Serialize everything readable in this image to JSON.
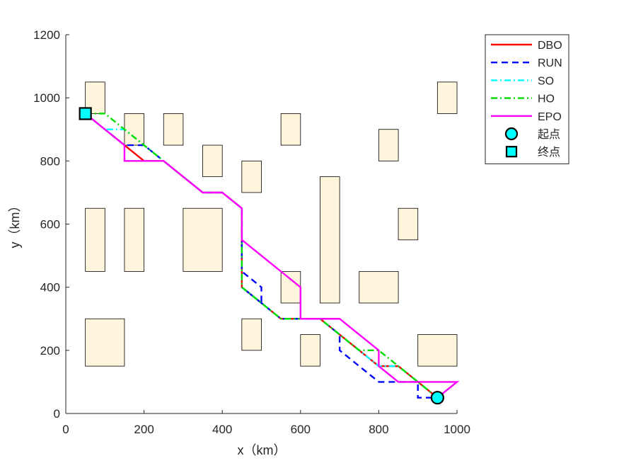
{
  "chart_data": {
    "type": "line",
    "xlabel": "x（km）",
    "ylabel": "y（km）",
    "xlim": [
      0,
      1000
    ],
    "ylim": [
      0,
      1200
    ],
    "xticks": [
      0,
      200,
      400,
      600,
      800,
      1000
    ],
    "yticks": [
      0,
      200,
      400,
      600,
      800,
      1000,
      1200
    ],
    "grid": false,
    "legend_position": "top-right outside",
    "obstacle_color": "#FFF5DC",
    "obstacles": [
      {
        "x": [
          50,
          100
        ],
        "y": [
          950,
          1050
        ]
      },
      {
        "x": [
          150,
          200
        ],
        "y": [
          850,
          950
        ]
      },
      {
        "x": [
          250,
          300
        ],
        "y": [
          850,
          950
        ]
      },
      {
        "x": [
          350,
          400
        ],
        "y": [
          750,
          850
        ]
      },
      {
        "x": [
          450,
          500
        ],
        "y": [
          700,
          800
        ]
      },
      {
        "x": [
          550,
          600
        ],
        "y": [
          850,
          950
        ]
      },
      {
        "x": [
          800,
          850
        ],
        "y": [
          800,
          900
        ]
      },
      {
        "x": [
          950,
          1000
        ],
        "y": [
          950,
          1050
        ]
      },
      {
        "x": [
          50,
          100
        ],
        "y": [
          450,
          650
        ]
      },
      {
        "x": [
          150,
          200
        ],
        "y": [
          450,
          650
        ]
      },
      {
        "x": [
          300,
          400
        ],
        "y": [
          450,
          650
        ]
      },
      {
        "x": [
          650,
          700
        ],
        "y": [
          350,
          750
        ]
      },
      {
        "x": [
          850,
          900
        ],
        "y": [
          550,
          650
        ]
      },
      {
        "x": [
          550,
          600
        ],
        "y": [
          350,
          450
        ]
      },
      {
        "x": [
          750,
          850
        ],
        "y": [
          350,
          450
        ]
      },
      {
        "x": [
          50,
          150
        ],
        "y": [
          150,
          300
        ]
      },
      {
        "x": [
          450,
          500
        ],
        "y": [
          200,
          300
        ]
      },
      {
        "x": [
          600,
          650
        ],
        "y": [
          150,
          250
        ]
      },
      {
        "x": [
          900,
          1000
        ],
        "y": [
          150,
          250
        ]
      }
    ],
    "series": [
      {
        "name": "DBO",
        "color": "#FF0000",
        "dash": "solid",
        "x": [
          50,
          100,
          150,
          200,
          250,
          300,
          350,
          400,
          450,
          450,
          500,
          550,
          600,
          650,
          700,
          750,
          800,
          850,
          900,
          950
        ],
        "y": [
          950,
          900,
          850,
          800,
          800,
          750,
          700,
          700,
          650,
          400,
          350,
          300,
          300,
          300,
          250,
          200,
          150,
          150,
          100,
          50
        ]
      },
      {
        "name": "RUN",
        "color": "#0000FF",
        "dash": "dashed",
        "x": [
          50,
          100,
          150,
          200,
          250,
          300,
          350,
          400,
          450,
          450,
          500,
          500,
          450,
          450,
          500,
          550,
          600,
          650,
          700,
          700,
          750,
          800,
          850,
          900,
          900,
          950
        ],
        "y": [
          950,
          900,
          850,
          850,
          800,
          750,
          700,
          700,
          650,
          450,
          400,
          350,
          400,
          400,
          350,
          300,
          300,
          300,
          250,
          200,
          150,
          100,
          100,
          100,
          50,
          50
        ]
      },
      {
        "name": "SO",
        "color": "#00FFFF",
        "dash": "dashdot",
        "x": [
          50,
          100,
          150,
          200,
          250,
          300,
          350,
          400,
          450,
          450,
          500,
          550,
          600,
          650,
          700,
          750,
          800,
          850,
          900,
          950
        ],
        "y": [
          950,
          900,
          900,
          850,
          800,
          750,
          700,
          700,
          650,
          400,
          350,
          300,
          300,
          300,
          250,
          200,
          150,
          150,
          100,
          50
        ]
      },
      {
        "name": "HO",
        "color": "#00DD00",
        "dash": "dashdot",
        "x": [
          50,
          100,
          150,
          200,
          250,
          300,
          350,
          400,
          450,
          450,
          500,
          550,
          600,
          650,
          700,
          750,
          800,
          850,
          900,
          950
        ],
        "y": [
          950,
          950,
          900,
          850,
          800,
          750,
          700,
          700,
          650,
          400,
          350,
          300,
          300,
          300,
          250,
          200,
          200,
          150,
          100,
          50
        ]
      },
      {
        "name": "EPO",
        "color": "#FF00FF",
        "dash": "solid",
        "x": [
          50,
          100,
          150,
          150,
          200,
          250,
          300,
          350,
          400,
          450,
          450,
          500,
          550,
          600,
          600,
          650,
          700,
          750,
          800,
          800,
          850,
          900,
          950,
          1000,
          950
        ],
        "y": [
          950,
          900,
          850,
          800,
          800,
          800,
          750,
          700,
          700,
          650,
          550,
          500,
          450,
          400,
          300,
          300,
          300,
          250,
          200,
          150,
          100,
          100,
          100,
          100,
          50
        ]
      }
    ],
    "markers": [
      {
        "name": "起点",
        "shape": "circle",
        "color": "#00FFFF",
        "x": 950,
        "y": 50
      },
      {
        "name": "终点",
        "shape": "square",
        "color": "#00FFFF",
        "x": 50,
        "y": 950
      }
    ]
  }
}
